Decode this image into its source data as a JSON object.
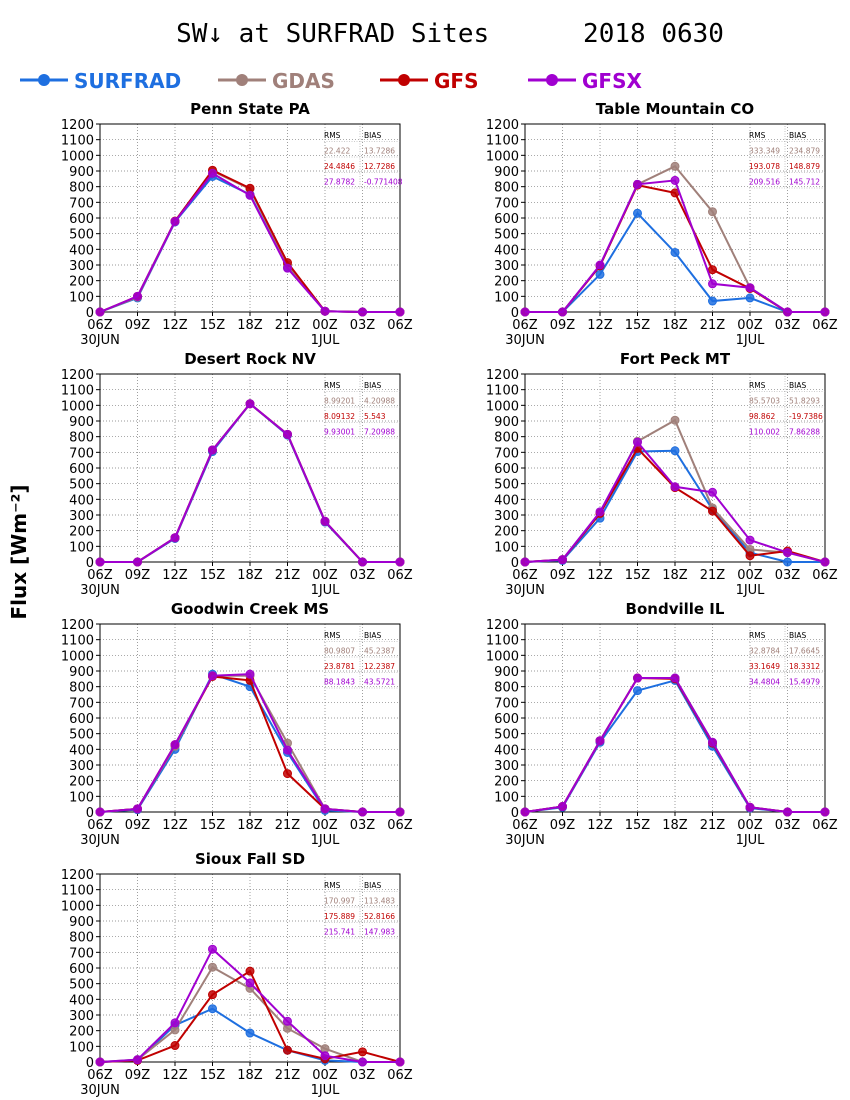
{
  "title": "SW↓ at SURFRAD Sites      2018 0630",
  "ylabel": "Flux [Wm⁻²]",
  "legend": [
    {
      "name": "SURFRAD",
      "color": "#1e6fe0"
    },
    {
      "name": "GDAS",
      "color": "#a0807a"
    },
    {
      "name": "GFS",
      "color": "#c00000"
    },
    {
      "name": "GFSX",
      "color": "#a000d0"
    }
  ],
  "chart_data": [
    {
      "type": "line",
      "title": "Penn State PA",
      "x": [
        "06Z",
        "09Z",
        "12Z",
        "15Z",
        "18Z",
        "21Z",
        "00Z",
        "03Z",
        "06Z"
      ],
      "x_date_labels": [
        "30JUN",
        "1JUL"
      ],
      "ylim": [
        0,
        1200
      ],
      "yticks": [
        0,
        100,
        200,
        300,
        400,
        500,
        600,
        700,
        800,
        900,
        1000,
        1100,
        1200
      ],
      "grid": true,
      "series": [
        {
          "name": "SURFRAD",
          "color": "#1e6fe0",
          "values": [
            0,
            90,
            575,
            865,
            750,
            285,
            5,
            0,
            0
          ]
        },
        {
          "name": "GDAS",
          "color": "#a0807a",
          "values": [
            0,
            95,
            580,
            900,
            785,
            300,
            5,
            0,
            0
          ]
        },
        {
          "name": "GFS",
          "color": "#c00000",
          "values": [
            0,
            100,
            580,
            905,
            790,
            315,
            5,
            0,
            0
          ]
        },
        {
          "name": "GFSX",
          "color": "#a000d0",
          "values": [
            0,
            100,
            578,
            885,
            745,
            280,
            5,
            0,
            0
          ]
        }
      ],
      "stats": {
        "headers": [
          "RMS",
          "BIAS"
        ],
        "rows": [
          {
            "model": "GDAS",
            "rms": "22.422",
            "bias": "13.7286"
          },
          {
            "model": "GFS",
            "rms": "24.4846",
            "bias": "12.7286"
          },
          {
            "model": "GFSX",
            "rms": "27.8782",
            "bias": "-0.771408"
          }
        ]
      }
    },
    {
      "type": "line",
      "title": "Table Mountain CO",
      "x": [
        "06Z",
        "09Z",
        "12Z",
        "15Z",
        "18Z",
        "21Z",
        "00Z",
        "03Z",
        "06Z"
      ],
      "x_date_labels": [
        "30JUN",
        "1JUL"
      ],
      "ylim": [
        0,
        1200
      ],
      "yticks": [
        0,
        100,
        200,
        300,
        400,
        500,
        600,
        700,
        800,
        900,
        1000,
        1100,
        1200
      ],
      "grid": true,
      "series": [
        {
          "name": "SURFRAD",
          "color": "#1e6fe0",
          "values": [
            0,
            0,
            240,
            630,
            380,
            70,
            90,
            0,
            0
          ]
        },
        {
          "name": "GDAS",
          "color": "#a0807a",
          "values": [
            0,
            0,
            295,
            815,
            930,
            640,
            155,
            0,
            0
          ]
        },
        {
          "name": "GFS",
          "color": "#c00000",
          "values": [
            0,
            0,
            295,
            810,
            760,
            270,
            150,
            0,
            0
          ]
        },
        {
          "name": "GFSX",
          "color": "#a000d0",
          "values": [
            0,
            0,
            300,
            815,
            840,
            180,
            155,
            0,
            0
          ]
        }
      ],
      "stats": {
        "headers": [
          "RMS",
          "BIAS"
        ],
        "rows": [
          {
            "model": "GDAS",
            "rms": "333.349",
            "bias": "234.879"
          },
          {
            "model": "GFS",
            "rms": "193.078",
            "bias": "148.879"
          },
          {
            "model": "GFSX",
            "rms": "209.516",
            "bias": "145.712"
          }
        ]
      }
    },
    {
      "type": "line",
      "title": "Desert Rock NV",
      "x": [
        "06Z",
        "09Z",
        "12Z",
        "15Z",
        "18Z",
        "21Z",
        "00Z",
        "03Z",
        "06Z"
      ],
      "x_date_labels": [
        "30JUN",
        "1JUL"
      ],
      "ylim": [
        0,
        1200
      ],
      "yticks": [
        0,
        100,
        200,
        300,
        400,
        500,
        600,
        700,
        800,
        900,
        1000,
        1100,
        1200
      ],
      "grid": true,
      "series": [
        {
          "name": "SURFRAD",
          "color": "#1e6fe0",
          "values": [
            0,
            0,
            150,
            705,
            1010,
            810,
            255,
            0,
            0
          ]
        },
        {
          "name": "GDAS",
          "color": "#a0807a",
          "values": [
            0,
            0,
            155,
            715,
            1010,
            815,
            260,
            0,
            0
          ]
        },
        {
          "name": "GFS",
          "color": "#c00000",
          "values": [
            0,
            0,
            155,
            715,
            1010,
            815,
            260,
            0,
            0
          ]
        },
        {
          "name": "GFSX",
          "color": "#a000d0",
          "values": [
            0,
            0,
            155,
            715,
            1010,
            815,
            260,
            0,
            0
          ]
        }
      ],
      "stats": {
        "headers": [
          "RMS",
          "BIAS"
        ],
        "rows": [
          {
            "model": "GDAS",
            "rms": "8.99201",
            "bias": "4.20988"
          },
          {
            "model": "GFS",
            "rms": "8.09132",
            "bias": "5.543"
          },
          {
            "model": "GFSX",
            "rms": "9.93001",
            "bias": "7.20988"
          }
        ]
      }
    },
    {
      "type": "line",
      "title": "Fort Peck MT",
      "x": [
        "06Z",
        "09Z",
        "12Z",
        "15Z",
        "18Z",
        "21Z",
        "00Z",
        "03Z",
        "06Z"
      ],
      "x_date_labels": [
        "30JUN",
        "1JUL"
      ],
      "ylim": [
        0,
        1200
      ],
      "yticks": [
        0,
        100,
        200,
        300,
        400,
        500,
        600,
        700,
        800,
        900,
        1000,
        1100,
        1200
      ],
      "grid": true,
      "series": [
        {
          "name": "SURFRAD",
          "color": "#1e6fe0",
          "values": [
            0,
            10,
            280,
            705,
            710,
            335,
            60,
            0,
            0
          ]
        },
        {
          "name": "GDAS",
          "color": "#a0807a",
          "values": [
            0,
            15,
            310,
            770,
            905,
            345,
            80,
            60,
            0
          ]
        },
        {
          "name": "GFS",
          "color": "#c00000",
          "values": [
            0,
            15,
            310,
            725,
            475,
            325,
            40,
            70,
            0
          ]
        },
        {
          "name": "GFSX",
          "color": "#a000d0",
          "values": [
            0,
            15,
            320,
            765,
            480,
            445,
            140,
            60,
            0
          ]
        }
      ],
      "stats": {
        "headers": [
          "RMS",
          "BIAS"
        ],
        "rows": [
          {
            "model": "GDAS",
            "rms": "85.5703",
            "bias": "51.8293"
          },
          {
            "model": "GFS",
            "rms": "98.862",
            "bias": "-19.7386"
          },
          {
            "model": "GFSX",
            "rms": "110.002",
            "bias": "7.86288"
          }
        ]
      }
    },
    {
      "type": "line",
      "title": "Goodwin Creek MS",
      "x": [
        "06Z",
        "09Z",
        "12Z",
        "15Z",
        "18Z",
        "21Z",
        "00Z",
        "03Z",
        "06Z"
      ],
      "x_date_labels": [
        "30JUN",
        "1JUL"
      ],
      "ylim": [
        0,
        1200
      ],
      "yticks": [
        0,
        100,
        200,
        300,
        400,
        500,
        600,
        700,
        800,
        900,
        1000,
        1100,
        1200
      ],
      "grid": true,
      "series": [
        {
          "name": "SURFRAD",
          "color": "#1e6fe0",
          "values": [
            0,
            15,
            400,
            880,
            800,
            380,
            10,
            0,
            0
          ]
        },
        {
          "name": "GDAS",
          "color": "#a0807a",
          "values": [
            0,
            20,
            420,
            870,
            870,
            440,
            20,
            0,
            0
          ]
        },
        {
          "name": "GFS",
          "color": "#c00000",
          "values": [
            0,
            20,
            430,
            865,
            840,
            245,
            20,
            0,
            0
          ]
        },
        {
          "name": "GFSX",
          "color": "#a000d0",
          "values": [
            0,
            20,
            430,
            870,
            880,
            395,
            20,
            0,
            0
          ]
        }
      ],
      "stats": {
        "headers": [
          "RMS",
          "BIAS"
        ],
        "rows": [
          {
            "model": "GDAS",
            "rms": "80.9807",
            "bias": "45.2387"
          },
          {
            "model": "GFS",
            "rms": "23.8781",
            "bias": "12.2387"
          },
          {
            "model": "GFSX",
            "rms": "88.1843",
            "bias": "43.5721"
          }
        ]
      }
    },
    {
      "type": "line",
      "title": "Bondville IL",
      "x": [
        "06Z",
        "09Z",
        "12Z",
        "15Z",
        "18Z",
        "21Z",
        "00Z",
        "03Z",
        "06Z"
      ],
      "x_date_labels": [
        "30JUN",
        "1JUL"
      ],
      "ylim": [
        0,
        1200
      ],
      "yticks": [
        0,
        100,
        200,
        300,
        400,
        500,
        600,
        700,
        800,
        900,
        1000,
        1100,
        1200
      ],
      "grid": true,
      "series": [
        {
          "name": "SURFRAD",
          "color": "#1e6fe0",
          "values": [
            0,
            30,
            445,
            775,
            840,
            420,
            25,
            0,
            0
          ]
        },
        {
          "name": "GDAS",
          "color": "#a0807a",
          "values": [
            0,
            35,
            455,
            855,
            855,
            445,
            30,
            0,
            0
          ]
        },
        {
          "name": "GFS",
          "color": "#c00000",
          "values": [
            0,
            35,
            455,
            855,
            850,
            440,
            30,
            0,
            0
          ]
        },
        {
          "name": "GFSX",
          "color": "#a000d0",
          "values": [
            0,
            35,
            455,
            855,
            855,
            445,
            30,
            0,
            0
          ]
        }
      ],
      "stats": {
        "headers": [
          "RMS",
          "BIAS"
        ],
        "rows": [
          {
            "model": "GDAS",
            "rms": "32.8784",
            "bias": "17.6645"
          },
          {
            "model": "GFS",
            "rms": "33.1649",
            "bias": "18.3312"
          },
          {
            "model": "GFSX",
            "rms": "34.4804",
            "bias": "15.4979"
          }
        ]
      }
    },
    {
      "type": "line",
      "title": "Sioux Fall SD",
      "x": [
        "06Z",
        "09Z",
        "12Z",
        "15Z",
        "18Z",
        "21Z",
        "00Z",
        "03Z",
        "06Z"
      ],
      "x_date_labels": [
        "30JUN",
        "1JUL"
      ],
      "ylim": [
        0,
        1200
      ],
      "yticks": [
        0,
        100,
        200,
        300,
        400,
        500,
        600,
        700,
        800,
        900,
        1000,
        1100,
        1200
      ],
      "grid": true,
      "series": [
        {
          "name": "SURFRAD",
          "color": "#1e6fe0",
          "values": [
            0,
            10,
            235,
            340,
            185,
            75,
            10,
            0,
            0
          ]
        },
        {
          "name": "GDAS",
          "color": "#a0807a",
          "values": [
            0,
            15,
            205,
            605,
            470,
            215,
            85,
            0,
            0
          ]
        },
        {
          "name": "GFS",
          "color": "#c00000",
          "values": [
            0,
            10,
            105,
            430,
            580,
            75,
            20,
            65,
            0
          ]
        },
        {
          "name": "GFSX",
          "color": "#a000d0",
          "values": [
            0,
            15,
            250,
            720,
            505,
            260,
            40,
            0,
            0
          ]
        }
      ],
      "stats": {
        "headers": [
          "RMS",
          "BIAS"
        ],
        "rows": [
          {
            "model": "GDAS",
            "rms": "170.997",
            "bias": "113.483"
          },
          {
            "model": "GFS",
            "rms": "175.889",
            "bias": "52.8166"
          },
          {
            "model": "GFSX",
            "rms": "215.741",
            "bias": "147.983"
          }
        ]
      }
    }
  ]
}
